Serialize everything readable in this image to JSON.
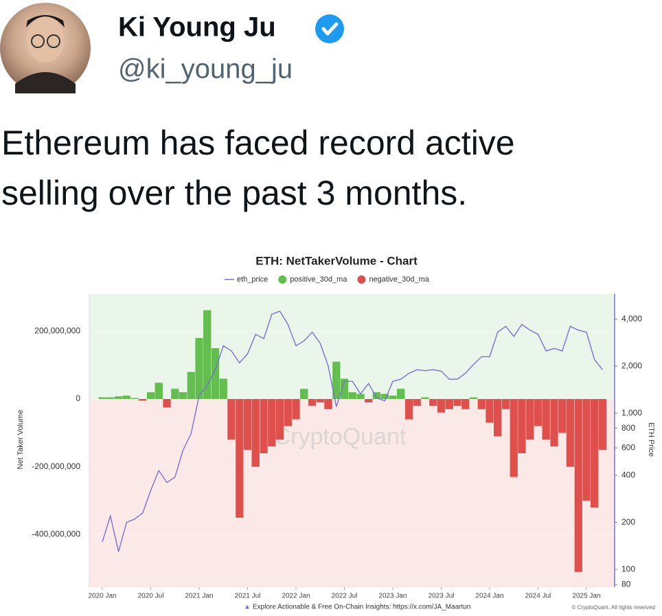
{
  "author": {
    "name": "Ki Young Ju",
    "handle": "@ki_young_ju"
  },
  "tweet": {
    "lines": [
      "Ethereum has faced record active",
      "selling over the past 3 months."
    ]
  },
  "chart_data": {
    "type": "combo",
    "title": "ETH: NetTakerVolume - Chart",
    "ylabel": "Net Taker Volume",
    "y2label": "ETH Price",
    "watermark": "CryptoQuant",
    "footer_note": "Explore Actionable & Free On-Chain Insights: https://x.com/JA_Maartun",
    "copyright": "© CryptoQuant. All rights reserved",
    "x": [
      2020,
      2020.083,
      2020.167,
      2020.25,
      2020.333,
      2020.417,
      2020.5,
      2020.583,
      2020.667,
      2020.75,
      2020.833,
      2020.917,
      2021,
      2021.083,
      2021.167,
      2021.25,
      2021.333,
      2021.417,
      2021.5,
      2021.583,
      2021.667,
      2021.75,
      2021.833,
      2021.917,
      2022,
      2022.083,
      2022.167,
      2022.25,
      2022.333,
      2022.417,
      2022.5,
      2022.583,
      2022.667,
      2022.75,
      2022.833,
      2022.917,
      2023,
      2023.083,
      2023.167,
      2023.25,
      2023.333,
      2023.417,
      2023.5,
      2023.583,
      2023.667,
      2023.75,
      2023.833,
      2023.917,
      2024,
      2024.083,
      2024.167,
      2024.25,
      2024.333,
      2024.417,
      2024.5,
      2024.583,
      2024.667,
      2024.75,
      2024.833,
      2024.917,
      2025,
      2025.083,
      2025.167
    ],
    "xlim": [
      2019.865,
      2025.291
    ],
    "xticks": [
      {
        "value": 2020,
        "label": "2020 Jan"
      },
      {
        "value": 2020.5,
        "label": "2020 Jul"
      },
      {
        "value": 2021,
        "label": "2021 Jan"
      },
      {
        "value": 2021.5,
        "label": "2021 Jul"
      },
      {
        "value": 2022,
        "label": "2022 Jan"
      },
      {
        "value": 2022.5,
        "label": "2022 Jul"
      },
      {
        "value": 2023,
        "label": "2023 Jan"
      },
      {
        "value": 2023.5,
        "label": "2023 Jul"
      },
      {
        "value": 2024,
        "label": "2024 Jan"
      },
      {
        "value": 2024.5,
        "label": "2024 Jul"
      },
      {
        "value": 2025,
        "label": "2025 Jan"
      }
    ],
    "ylim": [
      -555000000,
      310000000
    ],
    "yticks": [
      {
        "value": 200000000,
        "label": "200,000,000"
      },
      0,
      {
        "value": -200000000,
        "label": "-200,000,000"
      },
      {
        "value": -400000000,
        "label": "-400,000,000"
      }
    ],
    "y2lim": [
      77,
      5800
    ],
    "y2scale": "log",
    "y2ticks": [
      80,
      100,
      200,
      400,
      600,
      800,
      {
        "value": 1000,
        "label": "1,000"
      },
      {
        "value": 2000,
        "label": "2,000"
      },
      {
        "value": 4000,
        "label": "4,000"
      }
    ],
    "series": [
      {
        "name": "eth_price",
        "type": "line",
        "axis": "y2",
        "color": "#7b6fd6",
        "values": [
          150,
          220,
          130,
          200,
          210,
          230,
          320,
          430,
          360,
          390,
          580,
          740,
          1300,
          1500,
          1900,
          2700,
          2500,
          2100,
          2400,
          3200,
          3000,
          4300,
          4500,
          3700,
          2700,
          2900,
          3300,
          2800,
          2000,
          1100,
          1600,
          1600,
          1330,
          1550,
          1250,
          1200,
          1600,
          1650,
          1800,
          1900,
          1870,
          1900,
          1860,
          1650,
          1650,
          1800,
          2050,
          2300,
          2300,
          3300,
          3600,
          3100,
          3700,
          3400,
          3200,
          2500,
          2600,
          2500,
          3600,
          3400,
          3300,
          2200,
          1900
        ]
      },
      {
        "name": "positive_30d_ma",
        "type": "bar",
        "color": "#63bd4f",
        "values": [
          5000000,
          5000000,
          8000000,
          10000000,
          3000000,
          null,
          20000000,
          48000000,
          null,
          30000000,
          20000000,
          80000000,
          180000000,
          262000000,
          150000000,
          60000000,
          null,
          null,
          null,
          null,
          null,
          null,
          null,
          null,
          null,
          30000000,
          null,
          null,
          null,
          110000000,
          60000000,
          20000000,
          15000000,
          null,
          20000000,
          15000000,
          10000000,
          30000000,
          null,
          null,
          5000000,
          null,
          null,
          null,
          null,
          null,
          5000000,
          null,
          null,
          null,
          null,
          null,
          null,
          null,
          null,
          null,
          null,
          null,
          null,
          null,
          null,
          null,
          null
        ]
      },
      {
        "name": "negative_30d_ma",
        "type": "bar",
        "color": "#df4f4c",
        "values": [
          null,
          null,
          null,
          null,
          null,
          -5000000,
          null,
          null,
          -25000000,
          null,
          null,
          null,
          null,
          null,
          null,
          null,
          -120000000,
          -350000000,
          -150000000,
          -200000000,
          -160000000,
          -140000000,
          -120000000,
          -80000000,
          -60000000,
          null,
          -20000000,
          -10000000,
          -30000000,
          null,
          null,
          null,
          null,
          -10000000,
          null,
          null,
          null,
          null,
          -60000000,
          -20000000,
          null,
          -20000000,
          -40000000,
          -30000000,
          -20000000,
          -30000000,
          null,
          -30000000,
          -70000000,
          -110000000,
          -30000000,
          -230000000,
          -160000000,
          -120000000,
          -80000000,
          -120000000,
          -140000000,
          -100000000,
          -200000000,
          -510000000,
          -300000000,
          -320000000,
          -150000000
        ]
      }
    ]
  }
}
